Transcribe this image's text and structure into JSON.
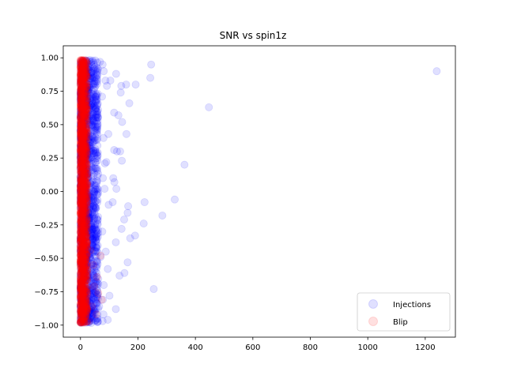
{
  "chart_data": {
    "type": "scatter",
    "title": "SNR vs spin1z",
    "xlabel": "",
    "ylabel": "",
    "xlim": [
      -60,
      1305
    ],
    "ylim": [
      -1.09,
      1.09
    ],
    "xticks": [
      0,
      200,
      400,
      600,
      800,
      1000,
      1200
    ],
    "yticks": [
      -1.0,
      -0.75,
      -0.5,
      -0.25,
      0.0,
      0.25,
      0.5,
      0.75,
      1.0
    ],
    "xtick_labels": [
      "0",
      "200",
      "400",
      "600",
      "800",
      "1000",
      "1200"
    ],
    "ytick_labels": [
      "−1.00",
      "−0.75",
      "−0.50",
      "−0.25",
      "0.00",
      "0.25",
      "0.50",
      "0.75",
      "1.00"
    ],
    "grid": false,
    "legend_placement": "lower-right",
    "series": [
      {
        "name": "Injections",
        "color": "#0000ff",
        "opacity": 0.12,
        "points": [
          [
            1240,
            0.9
          ],
          [
            447,
            0.63
          ],
          [
            246,
            0.95
          ],
          [
            243,
            0.85
          ],
          [
            362,
            0.2
          ],
          [
            328,
            -0.06
          ],
          [
            285,
            -0.18
          ],
          [
            223,
            -0.08
          ],
          [
            220,
            -0.24
          ],
          [
            255,
            -0.73
          ],
          [
            192,
            0.8
          ],
          [
            170,
            0.66
          ],
          [
            159,
            0.8
          ],
          [
            142,
            0.79
          ],
          [
            140,
            0.74
          ],
          [
            124,
            0.88
          ],
          [
            132,
            0.57
          ],
          [
            117,
            0.59
          ],
          [
            145,
            0.52
          ],
          [
            160,
            0.43
          ],
          [
            127,
            0.3
          ],
          [
            138,
            0.3
          ],
          [
            144,
            0.23
          ],
          [
            117,
            0.31
          ],
          [
            114,
            0.1
          ],
          [
            118,
            0.07
          ],
          [
            112,
            -0.08
          ],
          [
            125,
            0.02
          ],
          [
            152,
            -0.21
          ],
          [
            166,
            -0.11
          ],
          [
            164,
            -0.16
          ],
          [
            143,
            -0.28
          ],
          [
            173,
            -0.35
          ],
          [
            190,
            -0.33
          ],
          [
            123,
            -0.38
          ],
          [
            164,
            -0.53
          ],
          [
            153,
            -0.61
          ],
          [
            136,
            -0.63
          ],
          [
            123,
            -0.88
          ],
          [
            95,
            -0.58
          ],
          [
            77,
            0.95
          ],
          [
            81,
            0.9
          ],
          [
            87,
            0.83
          ],
          [
            92,
            0.79
          ],
          [
            75,
            0.71
          ],
          [
            97,
            0.43
          ],
          [
            80,
            0.4
          ],
          [
            85,
            0.21
          ],
          [
            90,
            0.22
          ],
          [
            78,
            0.1
          ],
          [
            84,
            0.02
          ],
          [
            98,
            -0.1
          ],
          [
            76,
            -0.3
          ],
          [
            88,
            -0.45
          ],
          [
            70,
            -0.49
          ],
          [
            81,
            -0.7
          ],
          [
            101,
            -0.78
          ],
          [
            95,
            -0.96
          ],
          [
            65,
            -0.86
          ],
          [
            77,
            -0.97
          ],
          [
            78,
            -0.81
          ],
          [
            80,
            -0.92
          ],
          [
            58,
            -0.95
          ],
          [
            104,
            0.83
          ],
          [
            68,
            0.97
          ]
        ]
      },
      {
        "name": "Blip",
        "color": "#ff0000",
        "opacity": 0.12,
        "points": [
          [
            70,
            -0.48
          ],
          [
            74,
            -0.81
          ],
          [
            62,
            -0.76
          ],
          [
            58,
            -0.64
          ],
          [
            55,
            -0.92
          ],
          [
            48,
            -0.71
          ],
          [
            45,
            -0.55
          ],
          [
            40,
            -0.86
          ],
          [
            35,
            -0.44
          ],
          [
            30,
            -0.97
          ]
        ]
      }
    ],
    "dense_bands": [
      {
        "series": 0,
        "x_min": 0,
        "x_max": 62,
        "count": 1400
      },
      {
        "series": 1,
        "x_min": 0,
        "x_max": 24,
        "count": 1500
      }
    ]
  }
}
